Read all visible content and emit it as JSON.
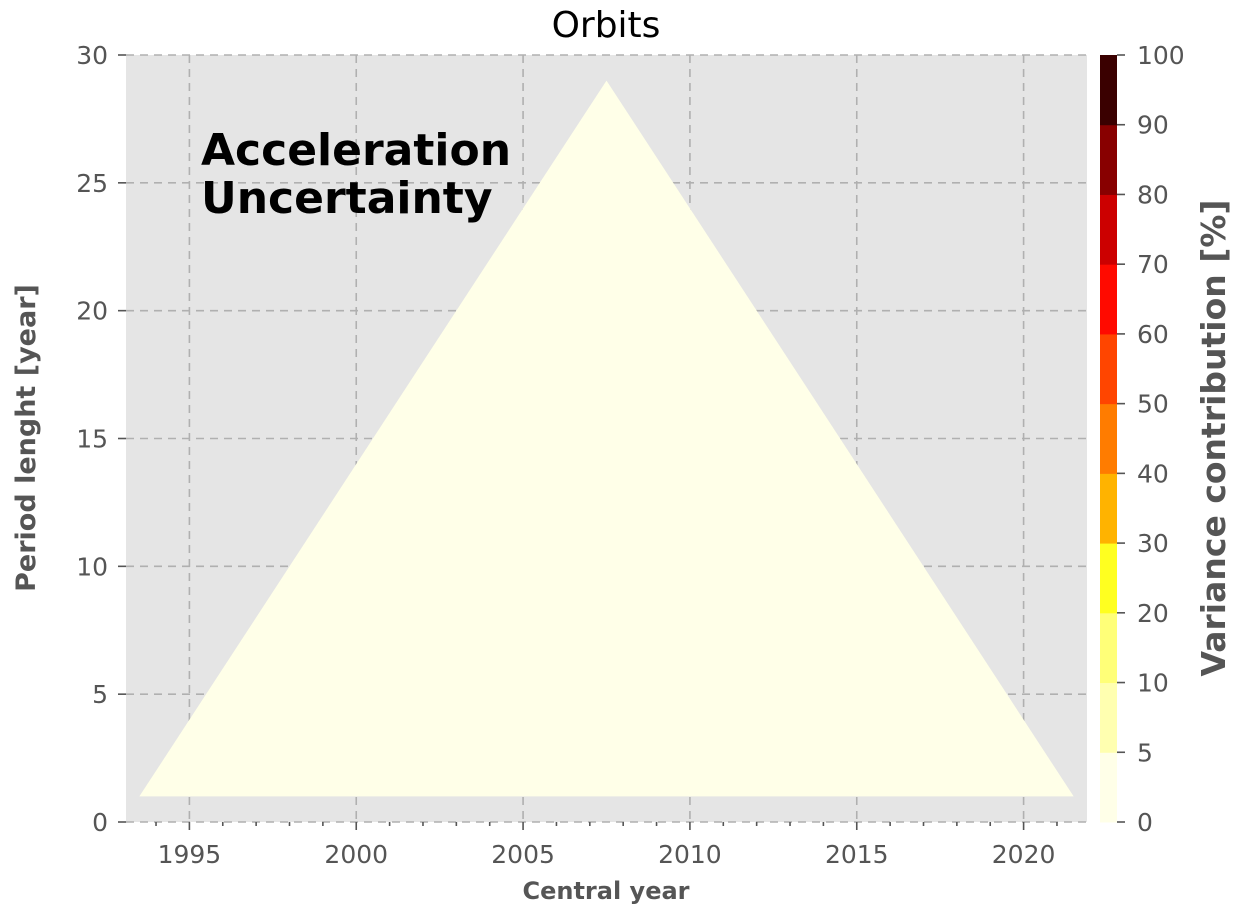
{
  "chart_data": {
    "type": "heatmap",
    "title": "Orbits",
    "xlabel": "Central year",
    "ylabel": "Period lenght [year]",
    "xlim": [
      1993.1,
      2021.9
    ],
    "ylim": [
      0,
      30
    ],
    "xticks": [
      1995,
      2000,
      2005,
      2010,
      2015,
      2020
    ],
    "yticks": [
      0,
      5,
      10,
      15,
      20,
      25,
      30
    ],
    "grid": true,
    "grid_style": "dashed",
    "background": "#e5e5e5",
    "annotation": [
      "Acceleration",
      "Uncertainty"
    ],
    "annotation_position": "top-left",
    "region": {
      "shape": "triangle",
      "vertices": [
        [
          1993.5,
          1
        ],
        [
          2007.5,
          29
        ],
        [
          2021.5,
          1
        ]
      ],
      "value_percent": 0,
      "color": "#ffffe8"
    },
    "colorbar": {
      "label": "Variance contribution [%]",
      "boundaries": [
        0,
        5,
        10,
        20,
        30,
        40,
        50,
        60,
        70,
        80,
        90,
        100
      ],
      "ticks": [
        0,
        5,
        10,
        20,
        30,
        40,
        50,
        60,
        70,
        80,
        90,
        100
      ],
      "colors": [
        "#ffffe8",
        "#ffffb0",
        "#ffff78",
        "#ffff20",
        "#ffb300",
        "#ff7c00",
        "#ff4500",
        "#ff0a00",
        "#cc0000",
        "#880000",
        "#3a0000"
      ]
    }
  }
}
